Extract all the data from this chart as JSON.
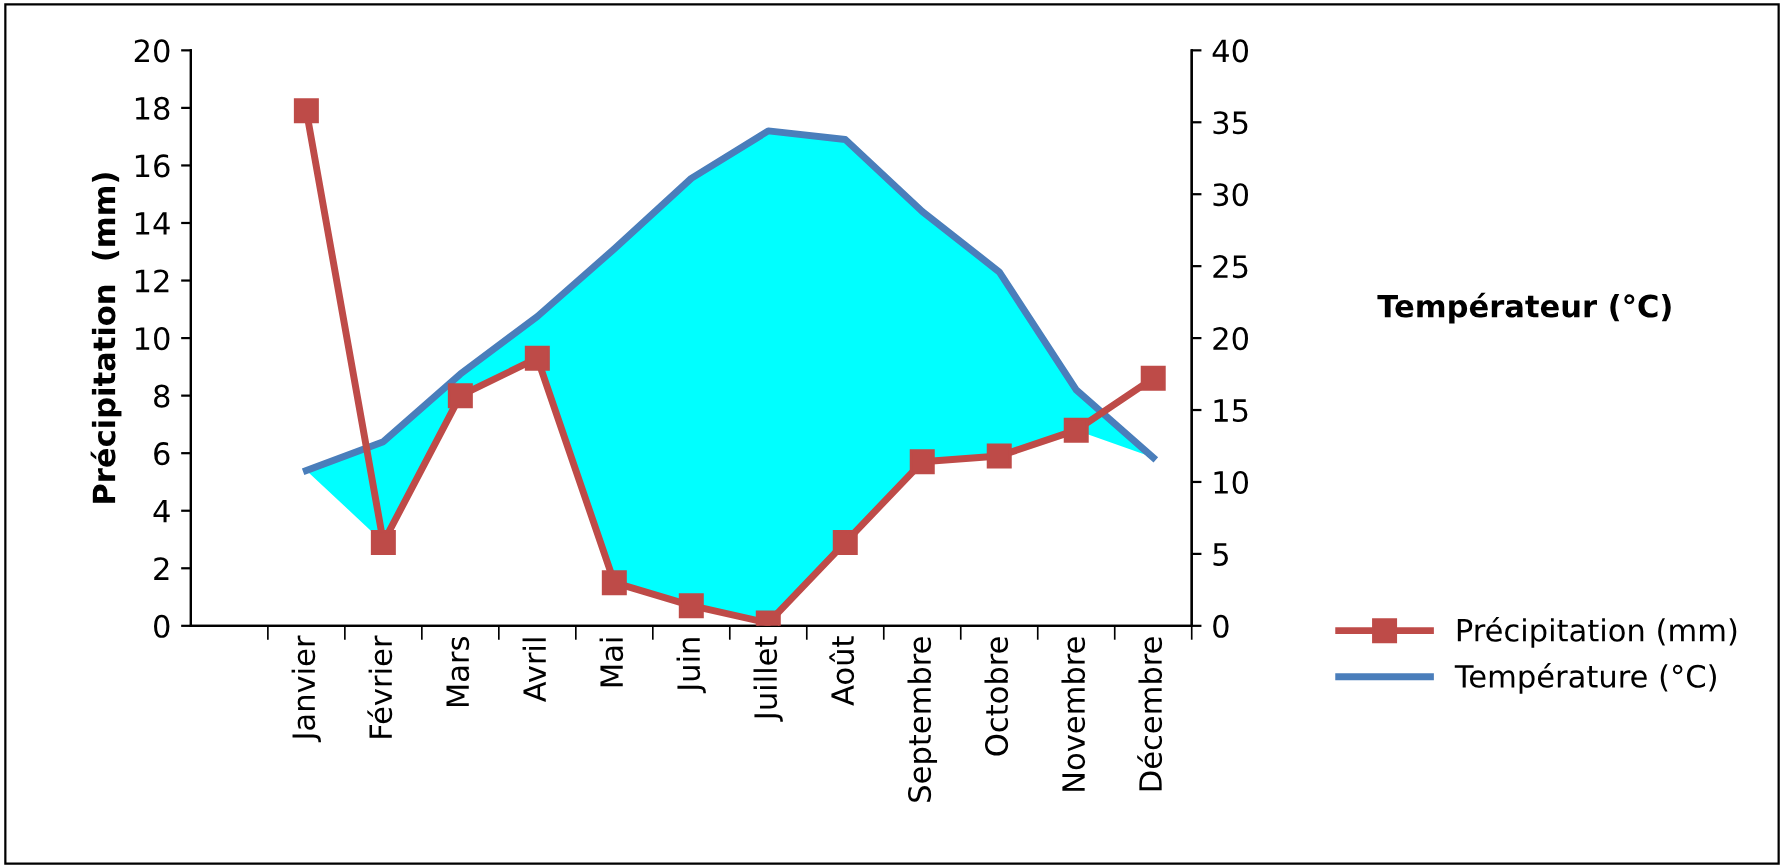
{
  "chart_data": {
    "type": "line",
    "categories": [
      "Janvier",
      "Février",
      "Mars",
      "Avril",
      "Mai",
      "Juin",
      "Juillet",
      "Août",
      "Septembre",
      "Octobre",
      "Novembre",
      "Décembre"
    ],
    "ylabel": "Précipitation  (mm)",
    "y2label": "Températeur (°C)",
    "ylim": [
      0,
      20
    ],
    "yticks": [
      0,
      2,
      4,
      6,
      8,
      10,
      12,
      14,
      16,
      18,
      20
    ],
    "y2lim": [
      0,
      40
    ],
    "y2ticks": [
      0,
      5,
      10,
      15,
      20,
      25,
      30,
      35,
      40
    ],
    "grid": false,
    "legend": "right",
    "series": [
      {
        "name": "Précipitation (mm)",
        "color": "#be4b48",
        "marker": "square",
        "values": [
          17.9,
          2.9,
          8.0,
          9.3,
          1.5,
          0.7,
          0.1,
          2.9,
          5.7,
          5.9,
          6.8,
          8.6
        ]
      },
      {
        "name": "Température (°C)",
        "color": "#4a7ebb",
        "axis": "y2",
        "marker": "none",
        "values": [
          10.8,
          12.8,
          17.5,
          21.5,
          26.2,
          31.1,
          34.4,
          33.8,
          28.8,
          24.6,
          16.4,
          11.7
        ],
        "lower": [
          10.8,
          5.8,
          16.0,
          18.6,
          3.0,
          1.4,
          0.2,
          5.8,
          11.4,
          11.8,
          13.6,
          11.7
        ],
        "upper": [
          10.8,
          12.8,
          17.5,
          21.5,
          26.2,
          31.1,
          34.4,
          33.8,
          28.8,
          24.6,
          16.4,
          11.7
        ]
      }
    ]
  }
}
